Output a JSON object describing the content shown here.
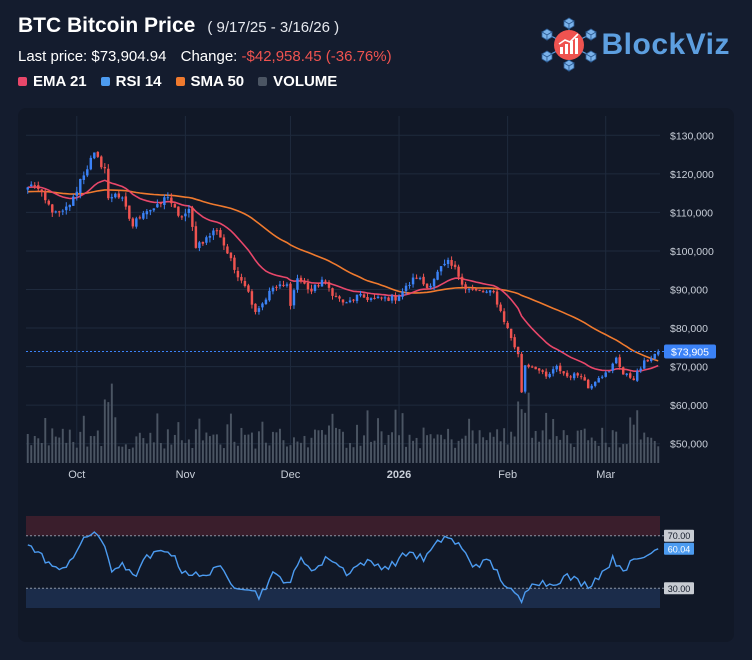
{
  "header": {
    "title": "BTC Bitcoin Price",
    "date_range": "( 9/17/25 - 3/16/26 )",
    "last_price_label": "Last price:",
    "last_price_value": "$73,904.94",
    "change_label": "Change:",
    "change_value": "-$42,958.45 (-36.76%)"
  },
  "logo": {
    "name": "BlockViz",
    "icon": "blockchain-chart-logo-icon"
  },
  "legend": [
    {
      "label": "EMA 21",
      "color": "#e8476a"
    },
    {
      "label": "RSI 14",
      "color": "#4c9bf0"
    },
    {
      "label": "SMA 50",
      "color": "#f07a2e"
    },
    {
      "label": "VOLUME",
      "color": "#4b5563"
    }
  ],
  "colors": {
    "up": "#3b82f6",
    "down": "#ef5350",
    "ema": "#e8476a",
    "sma": "#f07a2e",
    "rsi": "#4c9bf0",
    "volume": "#4b5563",
    "grid": "#1f2a3d",
    "axis_text": "#c9cfd9",
    "price_tag": "#3b82f6"
  },
  "chart_data": [
    {
      "type": "candlestick",
      "title": "BTC Bitcoin Price",
      "y_ticks": [
        "$130,000",
        "$120,000",
        "$110,000",
        "$100,000",
        "$90,000",
        "$80,000",
        "$70,000",
        "$60,000",
        "$50,000"
      ],
      "y_tick_values": [
        130000,
        120000,
        110000,
        100000,
        90000,
        80000,
        70000,
        60000,
        50000
      ],
      "ylim": [
        45000,
        135000
      ],
      "x_ticks": [
        {
          "label": "Oct",
          "x": "2025-10-01",
          "bold": false
        },
        {
          "label": "Nov",
          "x": "2025-11-01",
          "bold": false
        },
        {
          "label": "Dec",
          "x": "2025-12-01",
          "bold": false
        },
        {
          "label": "2026",
          "x": "2026-01-01",
          "bold": true
        },
        {
          "label": "Feb",
          "x": "2026-02-01",
          "bold": false
        },
        {
          "label": "Mar",
          "x": "2026-03-01",
          "bold": false
        }
      ],
      "x_range": [
        "2025-09-17",
        "2026-03-16"
      ],
      "last_price": 73905,
      "last_price_label": "$73,905",
      "close_key_dates": [
        [
          "2025-09-17",
          116500
        ],
        [
          "2025-09-19",
          117300
        ],
        [
          "2025-09-22",
          112800
        ],
        [
          "2025-09-25",
          109500
        ],
        [
          "2025-09-27",
          109800
        ],
        [
          "2025-09-30",
          113500
        ],
        [
          "2025-10-02",
          118500
        ],
        [
          "2025-10-05",
          123500
        ],
        [
          "2025-10-06",
          124700
        ],
        [
          "2025-10-09",
          121500
        ],
        [
          "2025-10-10",
          113200
        ],
        [
          "2025-10-12",
          115300
        ],
        [
          "2025-10-14",
          113000
        ],
        [
          "2025-10-16",
          108500
        ],
        [
          "2025-10-17",
          106500
        ],
        [
          "2025-10-20",
          110500
        ],
        [
          "2025-10-24",
          111200
        ],
        [
          "2025-10-27",
          114500
        ],
        [
          "2025-10-30",
          108500
        ],
        [
          "2025-11-02",
          110200
        ],
        [
          "2025-11-04",
          101500
        ],
        [
          "2025-11-07",
          103200
        ],
        [
          "2025-11-10",
          105800
        ],
        [
          "2025-11-13",
          99500
        ],
        [
          "2025-11-15",
          95200
        ],
        [
          "2025-11-18",
          91500
        ],
        [
          "2025-11-21",
          84500
        ],
        [
          "2025-11-23",
          86500
        ],
        [
          "2025-11-26",
          90500
        ],
        [
          "2025-11-30",
          91000
        ],
        [
          "2025-12-01",
          86500
        ],
        [
          "2025-12-03",
          93000
        ],
        [
          "2025-12-07",
          89500
        ],
        [
          "2025-12-10",
          92500
        ],
        [
          "2025-12-14",
          88000
        ],
        [
          "2025-12-17",
          86200
        ],
        [
          "2025-12-20",
          88200
        ],
        [
          "2025-12-25",
          87500
        ],
        [
          "2025-12-31",
          87800
        ],
        [
          "2026-01-03",
          90500
        ],
        [
          "2026-01-06",
          93500
        ],
        [
          "2026-01-09",
          90500
        ],
        [
          "2026-01-13",
          95500
        ],
        [
          "2026-01-15",
          96800
        ],
        [
          "2026-01-17",
          95200
        ],
        [
          "2026-01-20",
          90500
        ],
        [
          "2026-01-23",
          89500
        ],
        [
          "2026-01-28",
          89000
        ],
        [
          "2026-01-31",
          82000
        ],
        [
          "2026-02-02",
          77500
        ],
        [
          "2026-02-04",
          73000
        ],
        [
          "2026-02-05",
          63500
        ],
        [
          "2026-02-06",
          70500
        ],
        [
          "2026-02-09",
          69800
        ],
        [
          "2026-02-12",
          67200
        ],
        [
          "2026-02-15",
          69800
        ],
        [
          "2026-02-18",
          67500
        ],
        [
          "2026-02-22",
          68000
        ],
        [
          "2026-02-24",
          64500
        ],
        [
          "2026-02-27",
          67500
        ],
        [
          "2026-03-02",
          68500
        ],
        [
          "2026-03-04",
          72500
        ],
        [
          "2026-03-06",
          68000
        ],
        [
          "2026-03-09",
          67000
        ],
        [
          "2026-03-12",
          71000
        ],
        [
          "2026-03-16",
          73905
        ]
      ],
      "volume_description": "daily volume bars at bottom of price pane, largest spikes early Oct and Feb 5–6"
    },
    {
      "type": "line",
      "name": "RSI 14",
      "ylim": [
        15,
        85
      ],
      "bands": {
        "overbought": 70,
        "oversold": 30
      },
      "labels": [
        "70.00",
        "60.04",
        "30.00"
      ],
      "last_value": 60.04,
      "key_dates": [
        [
          "2025-09-17",
          63
        ],
        [
          "2025-09-22",
          52
        ],
        [
          "2025-09-26",
          42
        ],
        [
          "2025-09-30",
          55
        ],
        [
          "2025-10-03",
          66
        ],
        [
          "2025-10-06",
          74
        ],
        [
          "2025-10-08",
          67
        ],
        [
          "2025-10-11",
          43
        ],
        [
          "2025-10-14",
          50
        ],
        [
          "2025-10-17",
          38
        ],
        [
          "2025-10-21",
          53
        ],
        [
          "2025-10-27",
          60
        ],
        [
          "2025-10-31",
          44
        ],
        [
          "2025-11-06",
          38
        ],
        [
          "2025-11-10",
          48
        ],
        [
          "2025-11-14",
          33
        ],
        [
          "2025-11-19",
          31
        ],
        [
          "2025-11-22",
          24
        ],
        [
          "2025-11-26",
          40
        ],
        [
          "2025-12-01",
          35
        ],
        [
          "2025-12-04",
          52
        ],
        [
          "2025-12-08",
          44
        ],
        [
          "2025-12-12",
          54
        ],
        [
          "2025-12-17",
          42
        ],
        [
          "2025-12-22",
          50
        ],
        [
          "2025-12-29",
          46
        ],
        [
          "2026-01-04",
          58
        ],
        [
          "2026-01-08",
          52
        ],
        [
          "2026-01-14",
          70
        ],
        [
          "2026-01-18",
          63
        ],
        [
          "2026-01-22",
          48
        ],
        [
          "2026-01-27",
          50
        ],
        [
          "2026-02-01",
          30
        ],
        [
          "2026-02-05",
          20
        ],
        [
          "2026-02-08",
          36
        ],
        [
          "2026-02-13",
          33
        ],
        [
          "2026-02-18",
          39
        ],
        [
          "2026-02-24",
          32
        ],
        [
          "2026-02-28",
          42
        ],
        [
          "2026-03-03",
          52
        ],
        [
          "2026-03-06",
          45
        ],
        [
          "2026-03-09",
          50
        ],
        [
          "2026-03-12",
          54
        ],
        [
          "2026-03-16",
          60.04
        ]
      ]
    }
  ]
}
